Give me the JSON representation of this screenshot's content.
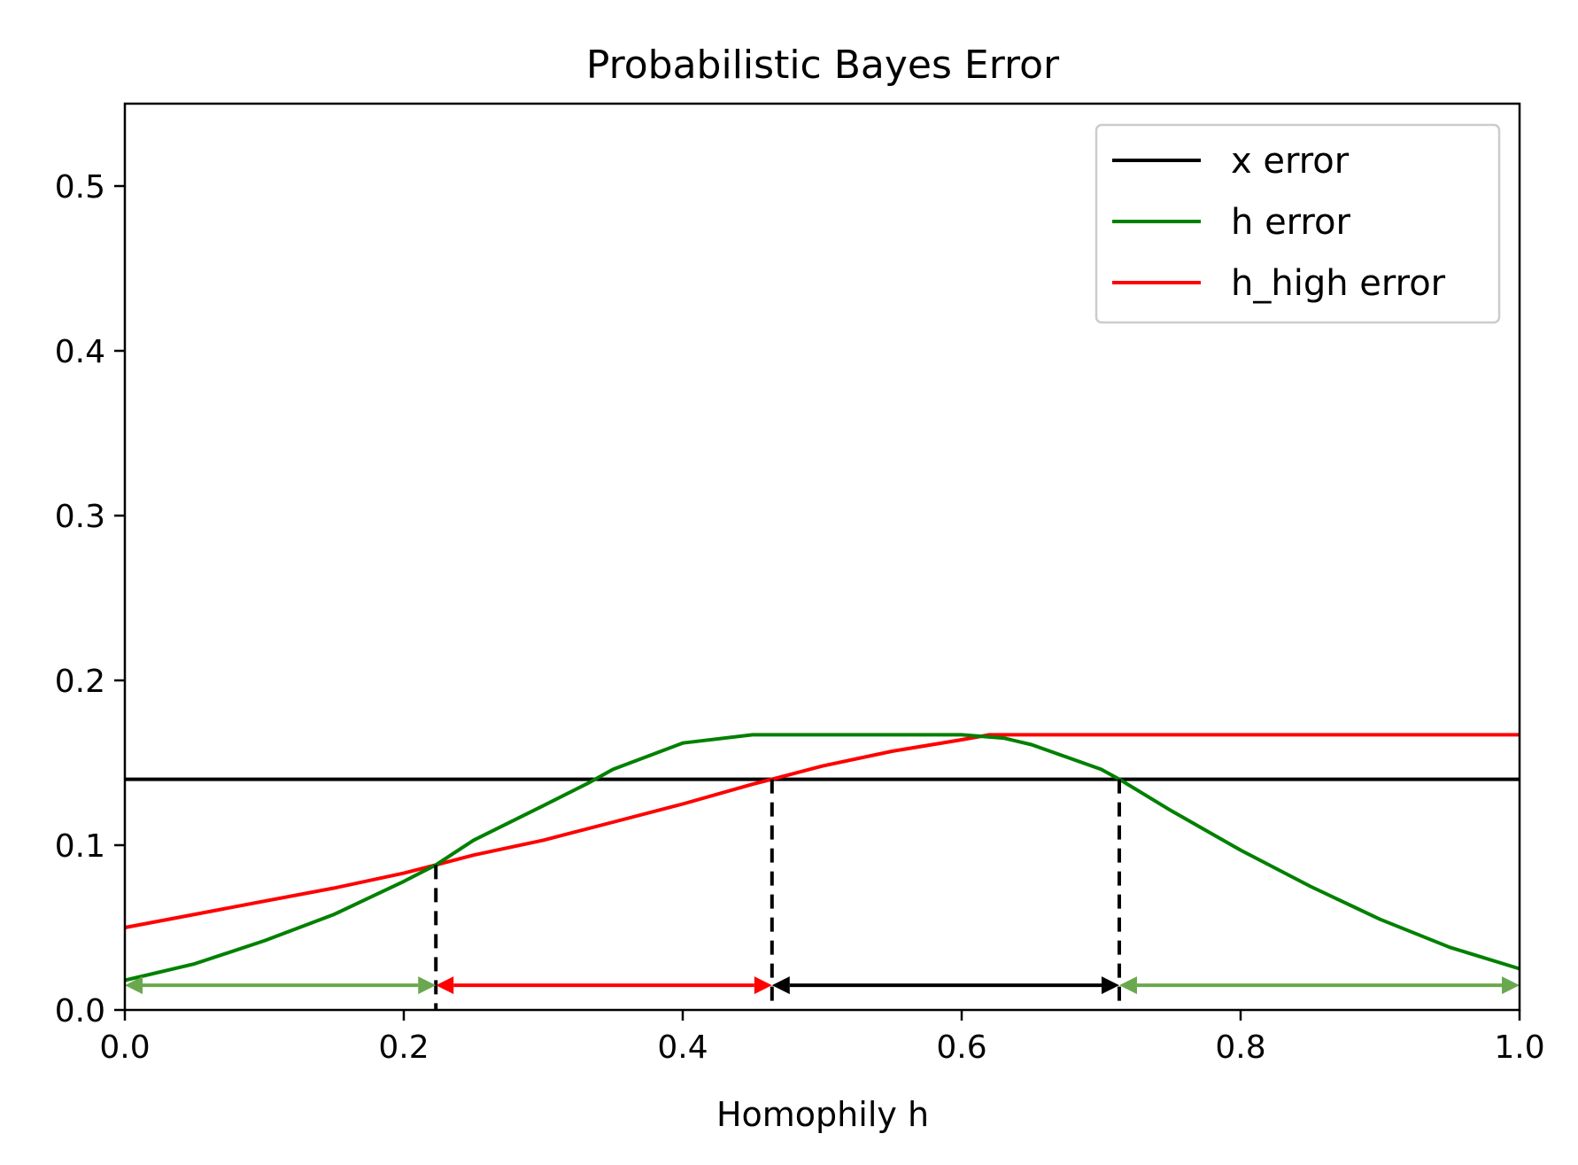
{
  "chart_data": {
    "type": "line",
    "title": "Probabilistic Bayes Error",
    "xlabel": "Homophily h",
    "ylabel": "",
    "xlim": [
      0.0,
      1.0
    ],
    "ylim": [
      0.0,
      0.55
    ],
    "xticks": [
      "0.0",
      "0.2",
      "0.4",
      "0.6",
      "0.8",
      "1.0"
    ],
    "yticks": [
      "0.0",
      "0.1",
      "0.2",
      "0.3",
      "0.4",
      "0.5"
    ],
    "grid": false,
    "legend_position": "top-right",
    "series": [
      {
        "name": "x error",
        "color": "#000000",
        "x": [
          0.0,
          1.0
        ],
        "y": [
          0.14,
          0.14
        ]
      },
      {
        "name": "h error",
        "color": "#008000",
        "x": [
          0.0,
          0.05,
          0.1,
          0.15,
          0.2,
          0.223,
          0.25,
          0.3,
          0.333,
          0.35,
          0.4,
          0.45,
          0.5,
          0.55,
          0.6,
          0.63,
          0.65,
          0.7,
          0.713,
          0.75,
          0.8,
          0.85,
          0.9,
          0.95,
          1.0
        ],
        "y": [
          0.018,
          0.028,
          0.042,
          0.058,
          0.078,
          0.088,
          0.103,
          0.124,
          0.138,
          0.146,
          0.162,
          0.167,
          0.167,
          0.167,
          0.167,
          0.165,
          0.161,
          0.146,
          0.14,
          0.121,
          0.097,
          0.075,
          0.055,
          0.038,
          0.025
        ]
      },
      {
        "name": "h_high error",
        "color": "#ff0000",
        "x": [
          0.0,
          0.05,
          0.1,
          0.15,
          0.2,
          0.223,
          0.25,
          0.3,
          0.35,
          0.4,
          0.45,
          0.464,
          0.5,
          0.55,
          0.6,
          0.62,
          0.7,
          0.8,
          0.9,
          1.0
        ],
        "y": [
          0.05,
          0.058,
          0.066,
          0.074,
          0.083,
          0.088,
          0.094,
          0.103,
          0.114,
          0.125,
          0.137,
          0.14,
          0.148,
          0.157,
          0.164,
          0.167,
          0.167,
          0.167,
          0.167,
          0.167
        ]
      }
    ],
    "vlines": [
      {
        "x": 0.223,
        "y_top": 0.088,
        "color": "#000000",
        "style": "dashed"
      },
      {
        "x": 0.464,
        "y_top": 0.14,
        "color": "#000000",
        "style": "dashed"
      },
      {
        "x": 0.713,
        "y_top": 0.14,
        "color": "#000000",
        "style": "dashed"
      }
    ],
    "arrows": [
      {
        "x_start": 0.0,
        "x_end": 0.223,
        "y": 0.015,
        "color": "#6aa84f"
      },
      {
        "x_start": 0.223,
        "x_end": 0.464,
        "y": 0.015,
        "color": "#ff0000"
      },
      {
        "x_start": 0.464,
        "x_end": 0.713,
        "y": 0.015,
        "color": "#000000"
      },
      {
        "x_start": 0.713,
        "x_end": 1.0,
        "y": 0.015,
        "color": "#6aa84f"
      }
    ]
  }
}
